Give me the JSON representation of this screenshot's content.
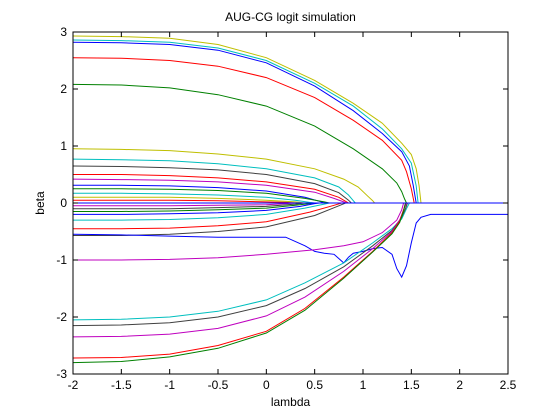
{
  "chart_data": {
    "type": "line",
    "title": "AUG-CG logit simulation",
    "xlabel": "lambda",
    "ylabel": "beta",
    "xlim": [
      -2,
      2.5
    ],
    "ylim": [
      -3,
      3
    ],
    "xticks": [
      -2,
      -1.5,
      -1,
      -0.5,
      0,
      0.5,
      1,
      1.5,
      2,
      2.5
    ],
    "xtick_labels": [
      "-2",
      "-1.5",
      "-1",
      "-0.5",
      "0",
      "0.5",
      "1",
      "1.5",
      "2",
      "2.5"
    ],
    "yticks": [
      -3,
      -2,
      -1,
      0,
      1,
      2,
      3
    ],
    "ytick_labels": [
      "-3",
      "-2",
      "-1",
      "0",
      "1",
      "2",
      "3"
    ],
    "grid": false,
    "legend": "none",
    "colors": {
      "blue": "#0000ff",
      "green": "#008000",
      "red": "#ff0000",
      "cyan": "#00bfbf",
      "magenta": "#bf00bf",
      "olive": "#bfbf00",
      "dark": "#404040"
    },
    "series": [
      {
        "color": "#bfbf00",
        "x": [
          -2,
          -1.5,
          -1,
          -0.5,
          0,
          0.5,
          0.9,
          1.2,
          1.4,
          1.5,
          1.55,
          1.58,
          1.6,
          2.5
        ],
        "y": [
          2.93,
          2.92,
          2.89,
          2.78,
          2.55,
          2.15,
          1.75,
          1.4,
          1.05,
          0.85,
          0.6,
          0.3,
          0,
          0
        ]
      },
      {
        "color": "#00bfbf",
        "x": [
          -2,
          -1.5,
          -1,
          -0.5,
          0,
          0.5,
          0.9,
          1.2,
          1.4,
          1.5,
          1.55,
          1.57,
          2.5
        ],
        "y": [
          2.86,
          2.85,
          2.82,
          2.72,
          2.5,
          2.1,
          1.7,
          1.3,
          0.95,
          0.7,
          0.3,
          0,
          0
        ]
      },
      {
        "color": "#0000ff",
        "x": [
          -2,
          -1.5,
          -1,
          -0.5,
          0,
          0.5,
          0.9,
          1.2,
          1.4,
          1.48,
          1.52,
          1.55,
          2.5
        ],
        "y": [
          2.82,
          2.81,
          2.78,
          2.68,
          2.46,
          2.05,
          1.62,
          1.22,
          0.9,
          0.65,
          0.3,
          0,
          0
        ]
      },
      {
        "color": "#ff0000",
        "x": [
          -2,
          -1.5,
          -1,
          -0.5,
          0,
          0.5,
          0.9,
          1.2,
          1.4,
          1.45,
          1.5,
          1.53,
          2.5
        ],
        "y": [
          2.55,
          2.54,
          2.5,
          2.4,
          2.2,
          1.85,
          1.45,
          1.1,
          0.75,
          0.55,
          0.25,
          0,
          0
        ]
      },
      {
        "color": "#008000",
        "x": [
          -2,
          -1.5,
          -1,
          -0.5,
          0,
          0.5,
          0.9,
          1.2,
          1.35,
          1.4,
          1.43,
          1.45,
          2.5
        ],
        "y": [
          2.08,
          2.07,
          2.02,
          1.9,
          1.7,
          1.35,
          0.95,
          0.6,
          0.35,
          0.2,
          0.07,
          0,
          0
        ]
      },
      {
        "color": "#bfbf00",
        "x": [
          -2,
          -1.5,
          -1,
          -0.5,
          0,
          0.5,
          0.8,
          0.95,
          1.05,
          1.1,
          1.12,
          2.5
        ],
        "y": [
          0.95,
          0.94,
          0.92,
          0.86,
          0.77,
          0.6,
          0.42,
          0.28,
          0.12,
          0.04,
          0,
          0
        ]
      },
      {
        "color": "#00bfbf",
        "x": [
          -2,
          -1.5,
          -1,
          -0.5,
          0,
          0.5,
          0.75,
          0.85,
          0.9,
          0.92,
          2.5
        ],
        "y": [
          0.77,
          0.76,
          0.74,
          0.69,
          0.6,
          0.44,
          0.28,
          0.14,
          0.04,
          0,
          0
        ]
      },
      {
        "color": "#404040",
        "x": [
          -2,
          -1.5,
          -1,
          -0.5,
          0,
          0.5,
          0.75,
          0.85,
          0.88,
          2.5
        ],
        "y": [
          0.65,
          0.64,
          0.62,
          0.58,
          0.5,
          0.34,
          0.18,
          0.05,
          0,
          0
        ]
      },
      {
        "color": "#ff0000",
        "x": [
          -2,
          -1.5,
          -1,
          -0.5,
          0,
          0.5,
          0.75,
          0.82,
          0.85,
          2.5
        ],
        "y": [
          0.5,
          0.5,
          0.48,
          0.44,
          0.37,
          0.24,
          0.1,
          0.03,
          0,
          0
        ]
      },
      {
        "color": "#bf00bf",
        "x": [
          -2,
          -1.5,
          -1,
          -0.5,
          0,
          0.5,
          0.7,
          0.8,
          0.83,
          2.5
        ],
        "y": [
          0.42,
          0.41,
          0.4,
          0.37,
          0.31,
          0.19,
          0.08,
          0.02,
          0,
          0
        ]
      },
      {
        "color": "#0000ff",
        "x": [
          -2,
          -1.5,
          -1,
          -0.5,
          0,
          0.4,
          0.55,
          0.6,
          2.5
        ],
        "y": [
          0.31,
          0.31,
          0.3,
          0.27,
          0.21,
          0.1,
          0.03,
          0,
          0
        ]
      },
      {
        "color": "#008000",
        "x": [
          -2,
          -1.5,
          -1,
          -0.5,
          0,
          0.4,
          0.6,
          0.65,
          2.5
        ],
        "y": [
          0.25,
          0.25,
          0.24,
          0.22,
          0.17,
          0.08,
          0.02,
          0,
          0
        ]
      },
      {
        "color": "#00bfbf",
        "x": [
          -2,
          -1.5,
          -1,
          -0.5,
          0,
          0.3,
          0.45,
          0.5,
          2.5
        ],
        "y": [
          0.17,
          0.17,
          0.16,
          0.14,
          0.1,
          0.05,
          0.01,
          0,
          0
        ]
      },
      {
        "color": "#bfbf00",
        "x": [
          -2,
          -1.5,
          -1,
          -0.5,
          0,
          0.3,
          0.4,
          2.5
        ],
        "y": [
          0.1,
          0.1,
          0.1,
          0.08,
          0.05,
          0.02,
          0,
          0
        ]
      },
      {
        "color": "#ff0000",
        "x": [
          -2,
          -1.5,
          -1,
          -0.5,
          0,
          0.2,
          0.3,
          2.5
        ],
        "y": [
          0.05,
          0.05,
          0.05,
          0.04,
          0.02,
          0.01,
          0,
          0
        ]
      },
      {
        "color": "#bf00bf",
        "x": [
          -2,
          -1.5,
          -1,
          -0.5,
          0,
          0.2,
          0.3,
          2.5
        ],
        "y": [
          -0.05,
          -0.05,
          -0.05,
          -0.04,
          -0.03,
          -0.01,
          0,
          0
        ]
      },
      {
        "color": "#404040",
        "x": [
          -2,
          -1.5,
          -1,
          -0.5,
          0,
          0.3,
          0.4,
          2.5
        ],
        "y": [
          -0.1,
          -0.1,
          -0.1,
          -0.08,
          -0.06,
          -0.02,
          0,
          0
        ]
      },
      {
        "color": "#008000",
        "x": [
          -2,
          -1.5,
          -1,
          -0.5,
          0,
          0.3,
          0.45,
          0.5,
          2.5
        ],
        "y": [
          -0.15,
          -0.15,
          -0.14,
          -0.12,
          -0.09,
          -0.04,
          -0.01,
          0,
          0
        ]
      },
      {
        "color": "#0000ff",
        "x": [
          -2,
          -1.5,
          -1,
          -0.5,
          0,
          0.35,
          0.5,
          0.55,
          2.5
        ],
        "y": [
          -0.2,
          -0.2,
          -0.19,
          -0.17,
          -0.13,
          -0.06,
          -0.01,
          0,
          0
        ]
      },
      {
        "color": "#00bfbf",
        "x": [
          -2,
          -1.5,
          -1,
          -0.5,
          0,
          0.4,
          0.6,
          0.65,
          2.5
        ],
        "y": [
          -0.3,
          -0.3,
          -0.29,
          -0.26,
          -0.2,
          -0.09,
          -0.02,
          0,
          0
        ]
      },
      {
        "color": "#ff0000",
        "x": [
          -2,
          -1.5,
          -1,
          -0.5,
          0,
          0.45,
          0.7,
          0.78,
          2.5
        ],
        "y": [
          -0.45,
          -0.45,
          -0.44,
          -0.4,
          -0.33,
          -0.16,
          -0.04,
          0,
          0
        ]
      },
      {
        "color": "#404040",
        "x": [
          -2,
          -1.5,
          -1,
          -0.5,
          0,
          0.5,
          0.75,
          0.82,
          2.5
        ],
        "y": [
          -0.57,
          -0.57,
          -0.55,
          -0.5,
          -0.42,
          -0.22,
          -0.05,
          0,
          0
        ]
      },
      {
        "color": "#0000ff",
        "x": [
          -2,
          -1.5,
          -1,
          -0.5,
          0,
          0.2,
          0.4,
          0.5,
          0.6,
          0.7,
          0.8,
          0.85,
          0.9,
          1.0,
          1.1,
          1.2,
          1.3,
          1.35,
          1.4,
          1.45,
          1.5,
          1.55,
          1.6,
          1.7,
          2.5
        ],
        "y": [
          -0.55,
          -0.56,
          -0.58,
          -0.6,
          -0.6,
          -0.6,
          -0.75,
          -0.85,
          -0.88,
          -0.9,
          -1.05,
          -0.95,
          -0.88,
          -0.85,
          -0.8,
          -0.78,
          -0.9,
          -1.15,
          -1.3,
          -1.1,
          -0.7,
          -0.35,
          -0.25,
          -0.2,
          -0.2
        ]
      },
      {
        "color": "#bf00bf",
        "x": [
          -2,
          -1.5,
          -1,
          -0.5,
          0,
          0.5,
          0.8,
          1.0,
          1.2,
          1.35,
          1.4,
          1.42,
          2.5
        ],
        "y": [
          -1.0,
          -1.0,
          -0.99,
          -0.96,
          -0.9,
          -0.82,
          -0.75,
          -0.68,
          -0.52,
          -0.3,
          -0.12,
          0,
          0
        ]
      },
      {
        "color": "#00bfbf",
        "x": [
          -2,
          -1.5,
          -1,
          -0.5,
          0,
          0.4,
          0.8,
          1.1,
          1.3,
          1.4,
          1.45,
          1.48,
          2.5
        ],
        "y": [
          -2.05,
          -2.04,
          -2.0,
          -1.9,
          -1.7,
          -1.4,
          -1.05,
          -0.7,
          -0.45,
          -0.28,
          -0.1,
          0,
          0
        ]
      },
      {
        "color": "#404040",
        "x": [
          -2,
          -1.5,
          -1,
          -0.5,
          0,
          0.4,
          0.8,
          1.1,
          1.3,
          1.4,
          1.44,
          1.46,
          2.5
        ],
        "y": [
          -2.15,
          -2.14,
          -2.1,
          -2.0,
          -1.8,
          -1.5,
          -1.12,
          -0.75,
          -0.48,
          -0.25,
          -0.1,
          0,
          0
        ]
      },
      {
        "color": "#bf00bf",
        "x": [
          -2,
          -1.5,
          -1,
          -0.5,
          0,
          0.4,
          0.8,
          1.1,
          1.3,
          1.38,
          1.42,
          1.45,
          2.5
        ],
        "y": [
          -2.35,
          -2.34,
          -2.3,
          -2.2,
          -1.98,
          -1.65,
          -1.2,
          -0.8,
          -0.5,
          -0.3,
          -0.12,
          0,
          0
        ]
      },
      {
        "color": "#ff0000",
        "x": [
          -2,
          -1.5,
          -1,
          -0.5,
          0,
          0.4,
          0.8,
          1.1,
          1.3,
          1.38,
          1.42,
          1.44,
          2.5
        ],
        "y": [
          -2.72,
          -2.71,
          -2.65,
          -2.5,
          -2.25,
          -1.85,
          -1.3,
          -0.85,
          -0.52,
          -0.32,
          -0.12,
          0,
          0
        ]
      },
      {
        "color": "#008000",
        "x": [
          -2,
          -1.5,
          -1,
          -0.5,
          0,
          0.4,
          0.8,
          1.1,
          1.3,
          1.38,
          1.42,
          1.44,
          2.5
        ],
        "y": [
          -2.8,
          -2.78,
          -2.7,
          -2.55,
          -2.28,
          -1.88,
          -1.32,
          -0.86,
          -0.54,
          -0.34,
          -0.14,
          0,
          0
        ]
      },
      {
        "color": "#0000ff",
        "x": [
          -2,
          2.5
        ],
        "y": [
          0.0,
          0.0
        ]
      }
    ]
  }
}
